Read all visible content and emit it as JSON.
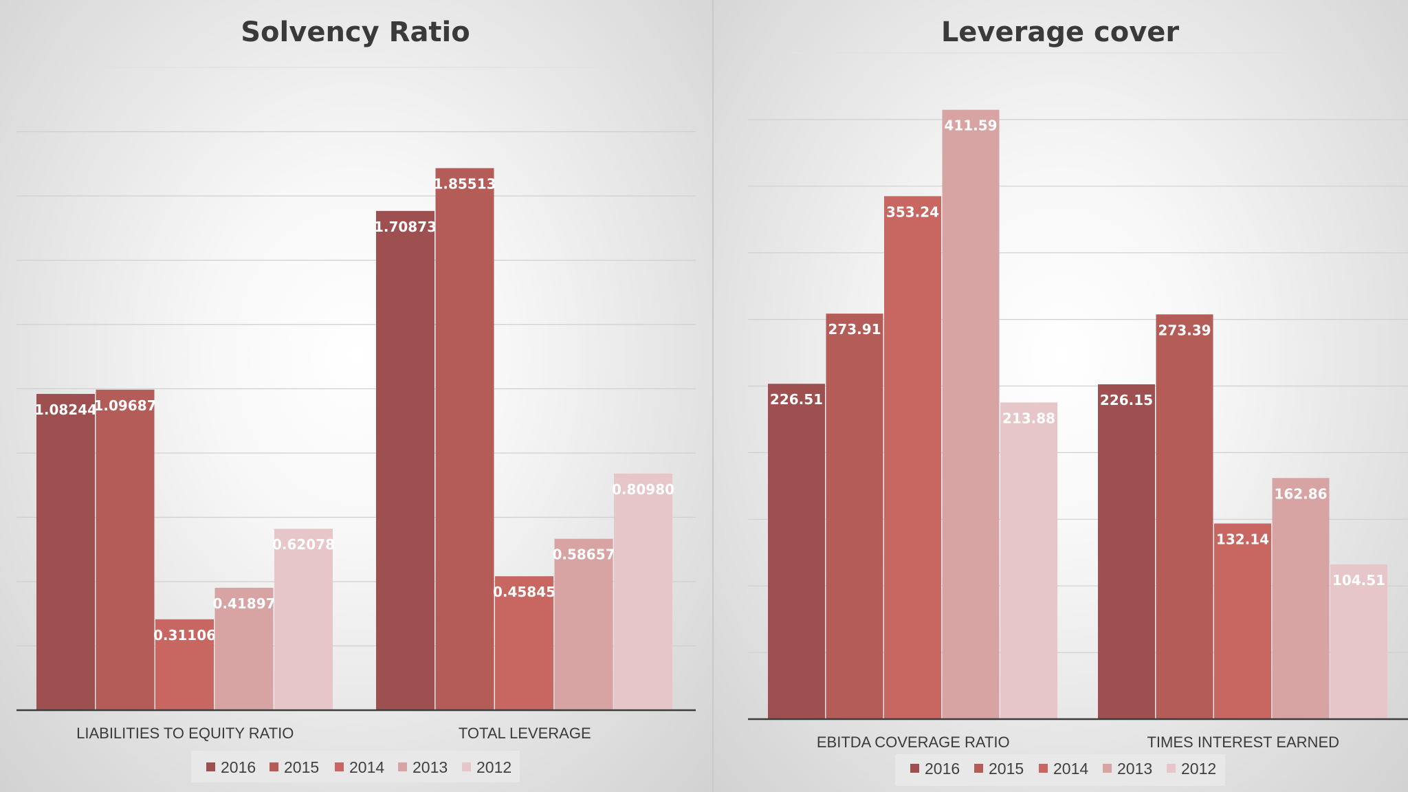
{
  "chart_data": [
    {
      "type": "bar",
      "title": "Solvency Ratio",
      "categories": [
        "LIABILITIES TO EQUITY RATIO",
        "TOTAL LEVERAGE"
      ],
      "series": [
        {
          "name": "2016",
          "values": [
            1.08244,
            1.70873
          ],
          "labels": [
            "1.08244",
            "1.70873"
          ],
          "color": "#9e4f4f"
        },
        {
          "name": "2015",
          "values": [
            1.09687,
            1.85513
          ],
          "labels": [
            "1.09687",
            "1.85513"
          ],
          "color": "#b45c58"
        },
        {
          "name": "2014",
          "values": [
            0.31106,
            0.45845
          ],
          "labels": [
            "0.31106",
            "0.45845"
          ],
          "color": "#c86762"
        },
        {
          "name": "2013",
          "values": [
            0.41897,
            0.58657
          ],
          "labels": [
            "0.41897",
            "0.58657"
          ],
          "color": "#d8a3a3"
        },
        {
          "name": "2012",
          "values": [
            0.62078,
            0.8098
          ],
          "labels": [
            "0.62078",
            "0.80980"
          ],
          "color": "#e6c6c8"
        }
      ],
      "ylim": [
        0,
        2.2
      ],
      "gridlines": true,
      "legend_position": "bottom"
    },
    {
      "type": "bar",
      "title": "Leverage cover",
      "categories": [
        "EBITDA COVERAGE RATIO",
        "TIMES INTEREST EARNED"
      ],
      "series": [
        {
          "name": "2016",
          "values": [
            226.51,
            226.15
          ],
          "labels": [
            "226.51",
            "226.15"
          ],
          "color": "#9e4f4f"
        },
        {
          "name": "2015",
          "values": [
            273.91,
            273.39
          ],
          "labels": [
            "273.91",
            "273.39"
          ],
          "color": "#b45c58"
        },
        {
          "name": "2014",
          "values": [
            353.24,
            132.14
          ],
          "labels": [
            "353.24",
            "132.14"
          ],
          "color": "#c86762"
        },
        {
          "name": "2013",
          "values": [
            411.59,
            162.86
          ],
          "labels": [
            "411.59",
            "162.86"
          ],
          "color": "#d8a3a3"
        },
        {
          "name": "2012",
          "values": [
            213.88,
            104.51
          ],
          "labels": [
            "213.88",
            "104.51"
          ],
          "color": "#e6c6c8"
        }
      ],
      "ylim": [
        0,
        450
      ],
      "gridlines": true,
      "legend_position": "bottom"
    }
  ]
}
